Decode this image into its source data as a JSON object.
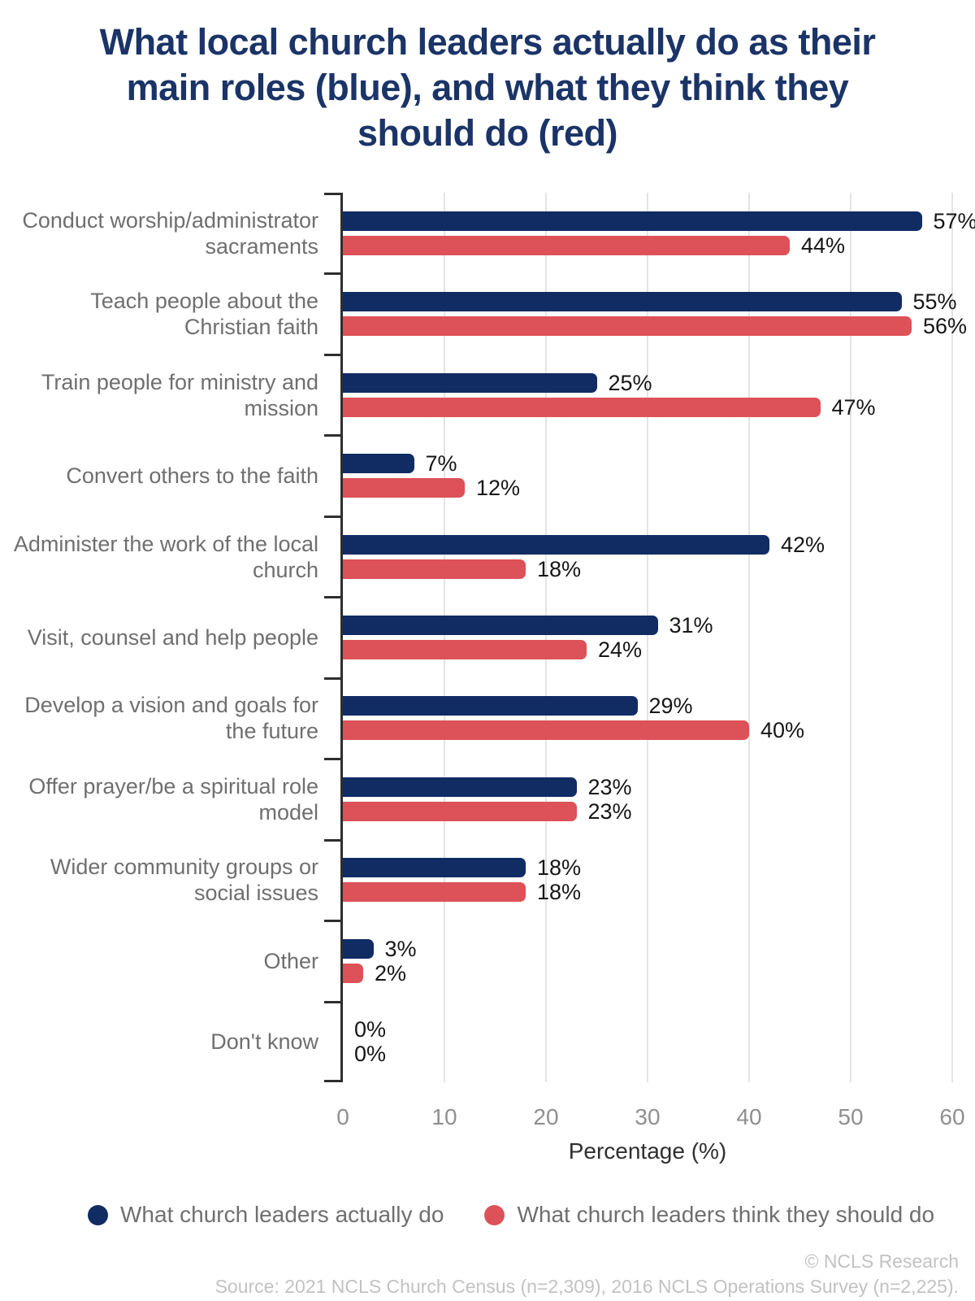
{
  "title": "What local church leaders actually do as their main roles (blue), and what they think they should do (red)",
  "chart_data": {
    "type": "bar",
    "orientation": "horizontal",
    "categories": [
      "Conduct worship/administrator sacraments",
      "Teach people about the Christian faith",
      "Train people for ministry and mission",
      "Convert others to the faith",
      "Administer the work of the local church",
      "Visit, counsel and help people",
      "Develop a vision and goals for the future",
      "Offer prayer/be a spiritual role model",
      "Wider community groups or social issues",
      "Other",
      "Don't know"
    ],
    "series": [
      {
        "name": "What church leaders actually do",
        "color": "#102c63",
        "values": [
          57,
          55,
          25,
          7,
          42,
          31,
          29,
          23,
          18,
          3,
          0
        ]
      },
      {
        "name": "What church leaders think they should do",
        "color": "#dd5158",
        "values": [
          44,
          56,
          47,
          12,
          18,
          24,
          40,
          23,
          18,
          2,
          0
        ]
      }
    ],
    "value_label_suffix": "%",
    "xlabel": "Percentage (%)",
    "xlim": [
      0,
      60
    ],
    "xticks": [
      0,
      10,
      20,
      30,
      40,
      50,
      60
    ],
    "grid": true,
    "legend_position": "bottom"
  },
  "footer": {
    "copyright": "© NCLS Research",
    "source": "Source: 2021 NCLS Church Census (n=2,309), 2016 NCLS Operations Survey (n=2,225)."
  },
  "colors": {
    "title": "#1b3468",
    "bar_blue": "#102c63",
    "bar_red": "#dd5158",
    "axis": "#2e2e2e",
    "gridline": "#e4e4e4",
    "category_label": "#6f6f6f",
    "tick_label": "#8f8f8f",
    "value_label": "#161616",
    "footer_text": "#c2c2c2"
  }
}
